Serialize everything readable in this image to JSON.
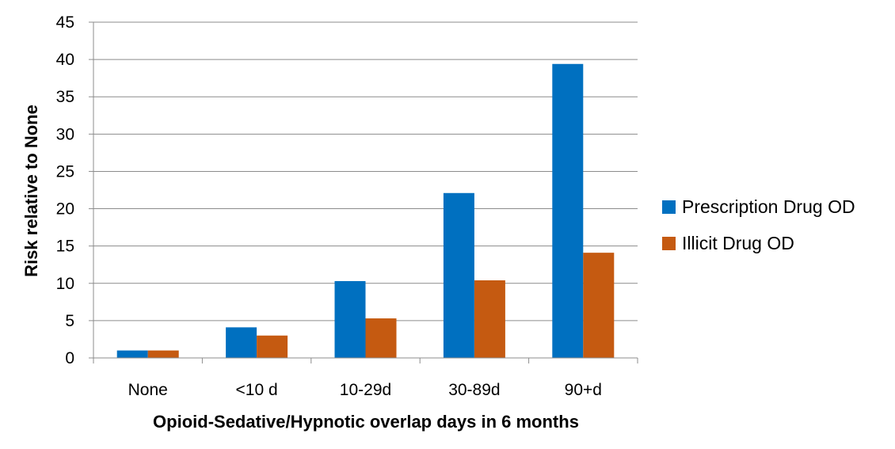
{
  "chart_data": {
    "type": "bar",
    "title": "",
    "xlabel": "Opioid-Sedative/Hypnotic overlap days in 6 months",
    "ylabel": "Risk relative to None",
    "categories": [
      "None",
      "<10 d",
      "10-29d",
      "30-89d",
      "90+d"
    ],
    "series": [
      {
        "name": "Prescription Drug OD",
        "color": "#0070C0",
        "values": [
          1.0,
          4.1,
          10.3,
          22.1,
          39.4
        ]
      },
      {
        "name": "Illicit Drug OD",
        "color": "#C55A11",
        "values": [
          1.0,
          3.0,
          5.3,
          10.4,
          14.1
        ]
      }
    ],
    "ylim": [
      0,
      45
    ],
    "yticks": [
      0,
      5,
      10,
      15,
      20,
      25,
      30,
      35,
      40,
      45
    ],
    "grid": true,
    "legend_position": "right"
  }
}
